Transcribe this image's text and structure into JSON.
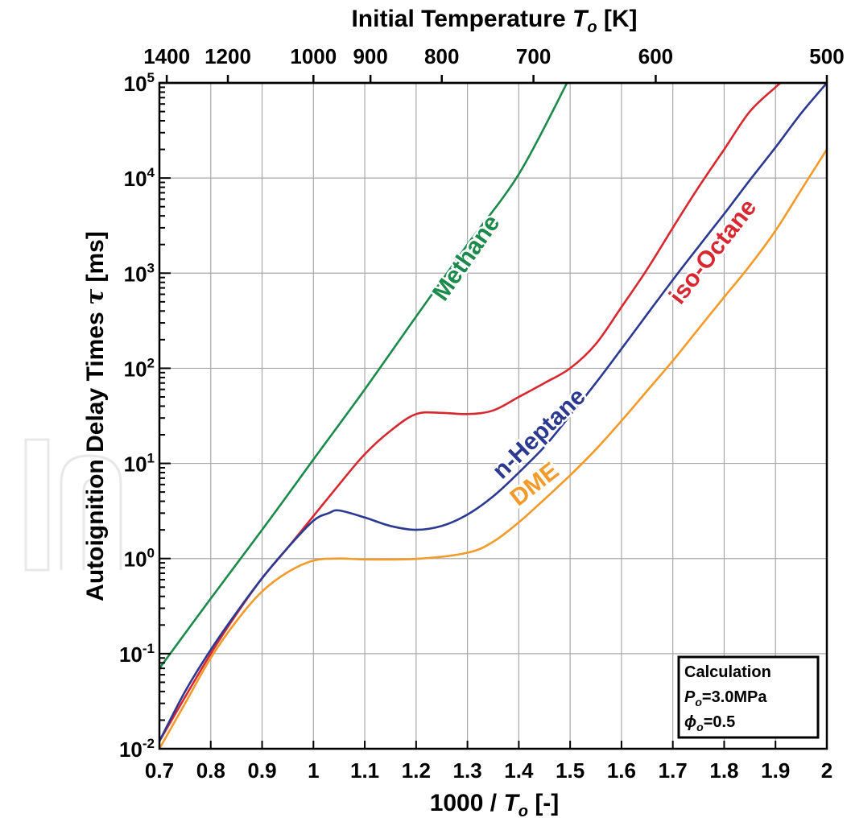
{
  "chart_data": {
    "type": "line",
    "x_axis": {
      "label_prefix": "1000 / ",
      "label_var": "T",
      "label_sub": "o",
      "label_suffix": " [-]",
      "range": [
        0.7,
        2.0
      ],
      "ticks": [
        "0.7",
        "0.8",
        "0.9",
        "1",
        "1.1",
        "1.2",
        "1.3",
        "1.4",
        "1.5",
        "1.6",
        "1.7",
        "1.8",
        "1.9",
        "2"
      ]
    },
    "top_axis": {
      "label_prefix": "Initial Temperature ",
      "label_var": "T",
      "label_sub": "o",
      "label_suffix": " [K]",
      "ticks": [
        "1400",
        "1200",
        "1000",
        "900",
        "800",
        "700",
        "600",
        "500"
      ]
    },
    "y_axis": {
      "label_prefix": "Autoignition Delay Times ",
      "label_var": "τ",
      "label_suffix": " [ms]",
      "scale": "log",
      "range": [
        0.01,
        100000
      ],
      "ticks": [
        "10",
        "10",
        "10",
        "10",
        "10",
        "10",
        "10",
        "10"
      ],
      "tick_exponents": [
        "-2",
        "-1",
        "0",
        "1",
        "2",
        "3",
        "4",
        "5"
      ]
    },
    "grid": true,
    "series": [
      {
        "name": "Methane",
        "color": "#1b8a4b",
        "x": [
          0.7,
          0.8,
          0.9,
          1.0,
          1.1,
          1.2,
          1.3,
          1.4,
          1.494
        ],
        "y": [
          0.07,
          0.38,
          2.0,
          11,
          60,
          350,
          2000,
          11000,
          100000
        ]
      },
      {
        "name": "iso-Octane",
        "color": "#d7282f",
        "x": [
          0.7,
          0.75,
          0.8,
          0.85,
          0.9,
          0.95,
          1.0,
          1.05,
          1.1,
          1.15,
          1.2,
          1.25,
          1.3,
          1.35,
          1.4,
          1.45,
          1.5,
          1.55,
          1.6,
          1.65,
          1.7,
          1.75,
          1.8,
          1.85,
          1.9,
          1.91
        ],
        "y": [
          0.012,
          0.035,
          0.1,
          0.26,
          0.62,
          1.3,
          2.8,
          6.0,
          12.5,
          22,
          33,
          34,
          33,
          36,
          50,
          70,
          100,
          180,
          440,
          1100,
          3000,
          8000,
          20000,
          50000,
          90000,
          100000
        ]
      },
      {
        "name": "n-Heptane",
        "color": "#2b3990",
        "x": [
          0.7,
          0.75,
          0.8,
          0.85,
          0.9,
          0.95,
          1.0,
          1.03,
          1.05,
          1.1,
          1.15,
          1.2,
          1.25,
          1.3,
          1.35,
          1.4,
          1.45,
          1.5,
          1.55,
          1.6,
          1.65,
          1.7,
          1.75,
          1.8,
          1.85,
          1.9,
          1.95,
          2.0
        ],
        "y": [
          0.012,
          0.04,
          0.11,
          0.27,
          0.62,
          1.3,
          2.5,
          3.0,
          3.2,
          2.7,
          2.2,
          2.0,
          2.2,
          2.9,
          4.5,
          8.0,
          15,
          32,
          70,
          160,
          370,
          850,
          1900,
          4200,
          9500,
          21000,
          48000,
          100000
        ]
      },
      {
        "name": "DME",
        "color": "#f39a2b",
        "x": [
          0.7,
          0.75,
          0.8,
          0.85,
          0.9,
          0.95,
          1.0,
          1.05,
          1.1,
          1.2,
          1.3,
          1.35,
          1.4,
          1.45,
          1.5,
          1.55,
          1.6,
          1.65,
          1.7,
          1.75,
          1.8,
          1.85,
          1.9,
          1.95,
          2.0
        ],
        "y": [
          0.01,
          0.03,
          0.09,
          0.22,
          0.45,
          0.72,
          0.95,
          1.0,
          0.98,
          0.99,
          1.15,
          1.5,
          2.4,
          4.2,
          7.5,
          14,
          28,
          58,
          120,
          260,
          560,
          1200,
          2800,
          7500,
          20000
        ]
      }
    ],
    "annotation_box": {
      "title": "Calculation",
      "pressure_var": "P",
      "pressure_sub": "o",
      "pressure_value": "=3.0MPa",
      "phi_var": "ϕ",
      "phi_sub": "o",
      "phi_value": "=0.5"
    },
    "watermark": "In"
  }
}
